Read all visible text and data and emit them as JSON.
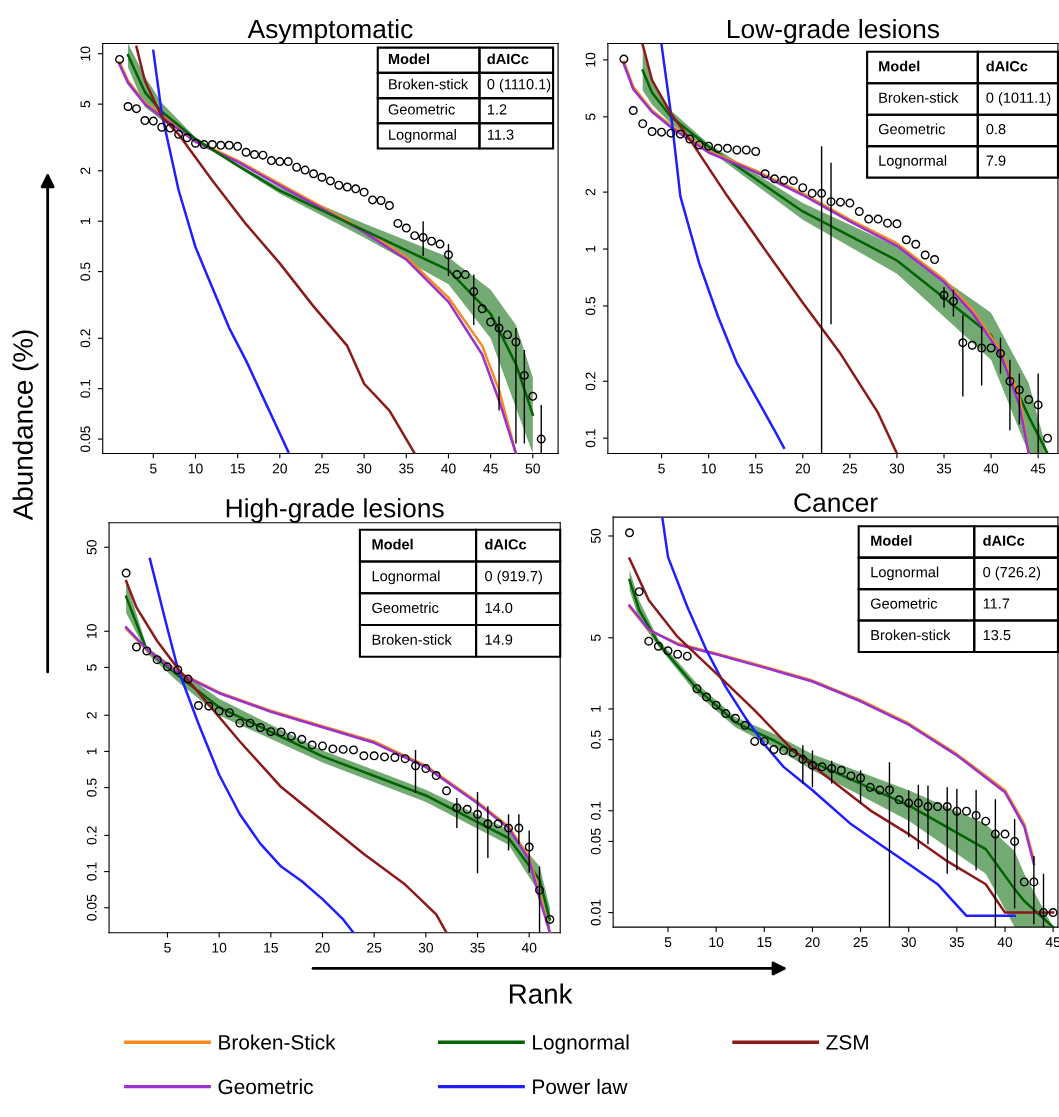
{
  "chart_data": [
    {
      "type": "line",
      "title": "Asymptomatic",
      "ylabel": "Abundance (%)",
      "log": true,
      "legend": "bottom",
      "xlim": [
        -1,
        53
      ],
      "ylim": [
        0.041,
        11.5
      ],
      "xticks": [
        5,
        10,
        15,
        20,
        25,
        30,
        35,
        40,
        45,
        50
      ],
      "yticks": [
        0.05,
        0.1,
        0.2,
        0.5,
        1,
        2,
        5,
        10
      ],
      "annotations": [
        "Model",
        "dAICc",
        "Broken-stick",
        "0 (1110.1)",
        "Geometric",
        "1.2",
        "Lognormal",
        "11.3"
      ],
      "series": [
        {
          "name": "Broken-Stick",
          "color": "#f58a1f",
          "x": [
            1,
            2,
            4,
            6,
            10,
            15,
            20,
            25,
            30,
            35,
            40,
            44,
            46,
            48
          ],
          "values": [
            8.9,
            6.9,
            5.1,
            4.3,
            3.03,
            2.3,
            1.67,
            1.22,
            0.88,
            0.61,
            0.35,
            0.18,
            0.098,
            0.041
          ]
        },
        {
          "name": "Geometric",
          "color": "#9a32cd",
          "x": [
            1,
            2,
            4,
            6,
            10,
            15,
            20,
            25,
            30,
            35,
            40,
            44,
            46,
            48
          ],
          "values": [
            8.6,
            6.7,
            5.0,
            4.2,
            2.98,
            2.26,
            1.63,
            1.19,
            0.86,
            0.59,
            0.33,
            0.16,
            0.085,
            0.041
          ]
        },
        {
          "name": "Lognormal",
          "color": "#006400",
          "x": [
            2,
            4,
            6,
            10,
            15,
            20,
            30,
            40,
            45,
            48,
            50
          ],
          "values": [
            9.8,
            5.9,
            4.5,
            3.1,
            2.15,
            1.52,
            0.88,
            0.51,
            0.28,
            0.14,
            0.07
          ],
          "lower": [
            8.3,
            4.8,
            4.0,
            3.03,
            2.1,
            1.46,
            0.8,
            0.42,
            0.2,
            0.077,
            0.041
          ],
          "upper": [
            11.5,
            7.3,
            5.1,
            3.16,
            2.2,
            1.59,
            0.97,
            0.61,
            0.39,
            0.24,
            0.117
          ]
        },
        {
          "name": "Power law",
          "color": "#1f1fff",
          "x": [
            5,
            6,
            8,
            10,
            12,
            14,
            16,
            18,
            20,
            21
          ],
          "values": [
            10.4,
            4.4,
            1.53,
            0.7,
            0.4,
            0.23,
            0.147,
            0.089,
            0.054,
            0.042
          ]
        },
        {
          "name": "ZSM",
          "color": "#8b1a1a",
          "x": [
            3,
            4,
            6,
            8,
            12,
            16,
            20,
            24,
            28,
            30,
            33,
            36
          ],
          "values": [
            11.0,
            6.9,
            4.2,
            3.3,
            1.75,
            0.96,
            0.56,
            0.31,
            0.18,
            0.107,
            0.074,
            0.041
          ]
        },
        {
          "type": "scatter",
          "marker": "circle",
          "color": "#000000",
          "x": [
            1,
            2,
            3,
            4,
            5,
            6,
            7,
            8,
            9,
            10,
            11,
            12,
            13,
            14,
            15,
            16,
            17,
            18,
            19,
            20,
            21,
            22,
            23,
            24,
            25,
            26,
            27,
            28,
            29,
            30,
            31,
            32,
            33,
            34,
            35,
            36,
            37,
            38,
            39,
            40,
            41,
            42,
            43,
            44,
            45,
            46,
            47,
            48,
            49,
            50,
            51
          ],
          "values": [
            9.25,
            4.84,
            4.7,
            3.99,
            3.96,
            3.64,
            3.6,
            3.3,
            3.15,
            2.92,
            2.87,
            2.87,
            2.84,
            2.84,
            2.8,
            2.58,
            2.5,
            2.48,
            2.3,
            2.27,
            2.27,
            2.1,
            2.02,
            1.92,
            1.83,
            1.74,
            1.64,
            1.6,
            1.56,
            1.49,
            1.34,
            1.33,
            1.24,
            0.97,
            0.91,
            0.82,
            0.8,
            0.76,
            0.73,
            0.63,
            0.48,
            0.48,
            0.38,
            0.3,
            0.25,
            0.23,
            0.21,
            0.19,
            0.12,
            0.09,
            0.05
          ],
          "errors": [
            null,
            null,
            null,
            null,
            null,
            null,
            null,
            null,
            null,
            null,
            null,
            null,
            null,
            null,
            null,
            null,
            null,
            null,
            null,
            null,
            null,
            null,
            null,
            null,
            null,
            null,
            null,
            null,
            null,
            null,
            null,
            null,
            null,
            null,
            null,
            null,
            [
              0.62,
              1.0
            ],
            null,
            null,
            [
              0.47,
              0.73
            ],
            null,
            null,
            [
              0.24,
              0.48
            ],
            null,
            null,
            [
              0.074,
              0.27
            ],
            null,
            [
              0.047,
              0.23
            ],
            [
              0.047,
              0.17
            ],
            null,
            [
              0.041,
              0.08
            ]
          ]
        }
      ]
    },
    {
      "type": "line",
      "title": "Low-grade lesions",
      "log": true,
      "xlim": [
        -0.7,
        47.1
      ],
      "ylim": [
        0.083,
        12.2
      ],
      "xticks": [
        5,
        10,
        15,
        20,
        25,
        30,
        35,
        40,
        45
      ],
      "yticks": [
        0.1,
        0.2,
        0.5,
        1,
        2,
        5,
        10
      ],
      "annotations": [
        "Model",
        "dAICc",
        "Broken-stick",
        "0 (1011.1)",
        "Geometric",
        "0.8",
        "Lognormal",
        "7.9"
      ],
      "series": [
        {
          "color": "#006400",
          "x": [
            3,
            4,
            6,
            10,
            20,
            30,
            40,
            44,
            46
          ],
          "values": [
            8.8,
            6.7,
            5.0,
            3.47,
            1.58,
            0.87,
            0.35,
            0.13,
            0.083
          ],
          "lower": [
            6.9,
            5.8,
            4.6,
            3.34,
            1.43,
            0.74,
            0.26,
            0.083,
            0.083
          ],
          "upper": [
            11.2,
            7.8,
            5.4,
            3.6,
            1.75,
            1.03,
            0.46,
            0.195,
            0.083
          ]
        },
        {
          "color": "#f58a1f",
          "x": [
            1,
            2,
            4,
            6,
            10,
            15,
            20,
            25,
            30,
            35,
            38,
            41,
            43,
            44
          ],
          "values": [
            9.8,
            7.2,
            5.4,
            4.5,
            3.3,
            2.6,
            1.97,
            1.43,
            1.07,
            0.69,
            0.48,
            0.29,
            0.166,
            0.083
          ]
        },
        {
          "color": "#9a32cd",
          "x": [
            1,
            2,
            4,
            6,
            10,
            15,
            20,
            25,
            30,
            35,
            38,
            41,
            43,
            44
          ],
          "values": [
            9.5,
            7.0,
            5.3,
            4.4,
            3.24,
            2.55,
            1.93,
            1.4,
            1.04,
            0.67,
            0.46,
            0.28,
            0.15,
            0.083
          ]
        },
        {
          "color": "#1f1fff",
          "x": [
            5,
            6,
            7,
            9,
            11,
            13,
            15,
            17,
            18
          ],
          "values": [
            12.0,
            5.2,
            1.9,
            0.84,
            0.44,
            0.25,
            0.166,
            0.11,
            0.089
          ]
        },
        {
          "color": "#8b1a1a",
          "x": [
            3,
            4,
            6,
            8,
            12,
            16,
            20,
            24,
            28,
            30
          ],
          "values": [
            12.0,
            7.8,
            5.2,
            3.8,
            1.9,
            0.99,
            0.52,
            0.28,
            0.136,
            0.083
          ]
        },
        {
          "type": "scatter",
          "marker": "circle",
          "color": "#000000",
          "x": [
            1,
            2,
            3,
            4,
            5,
            6,
            7,
            8,
            9,
            10,
            11,
            12,
            13,
            14,
            15,
            16,
            17,
            18,
            19,
            20,
            21,
            22,
            23,
            24,
            25,
            26,
            27,
            28,
            29,
            30,
            31,
            32,
            33,
            34,
            35,
            36,
            37,
            38,
            39,
            40,
            41,
            42,
            43,
            44,
            45,
            46
          ],
          "values": [
            10.1,
            5.4,
            4.6,
            4.18,
            4.15,
            4.1,
            4.05,
            3.82,
            3.55,
            3.5,
            3.41,
            3.41,
            3.34,
            3.34,
            3.28,
            2.5,
            2.35,
            2.31,
            2.3,
            2.11,
            1.97,
            1.97,
            1.78,
            1.77,
            1.75,
            1.58,
            1.44,
            1.44,
            1.37,
            1.36,
            1.12,
            1.06,
            0.93,
            0.88,
            0.57,
            0.53,
            0.32,
            0.31,
            0.3,
            0.3,
            0.28,
            0.2,
            0.18,
            0.16,
            0.15,
            0.1
          ],
          "errors": [
            null,
            null,
            null,
            null,
            null,
            null,
            null,
            null,
            null,
            null,
            null,
            null,
            null,
            null,
            null,
            null,
            null,
            null,
            null,
            null,
            null,
            [
              0.083,
              3.49
            ],
            [
              0.4,
              2.86
            ],
            null,
            null,
            null,
            null,
            null,
            null,
            null,
            null,
            null,
            null,
            null,
            [
              0.49,
              0.63
            ],
            [
              0.44,
              0.61
            ],
            [
              0.166,
              0.45
            ],
            null,
            [
              0.19,
              0.39
            ],
            null,
            [
              0.22,
              0.34
            ],
            [
              0.11,
              0.26
            ],
            [
              0.118,
              0.22
            ],
            null,
            [
              0.083,
              0.22
            ],
            null
          ]
        }
      ]
    },
    {
      "type": "line",
      "title": "High-grade lesions",
      "xlabel": "Rank",
      "log": true,
      "xlim": [
        -0.65,
        43
      ],
      "ylim": [
        0.031,
        80
      ],
      "xticks": [
        5,
        10,
        15,
        20,
        25,
        30,
        35,
        40
      ],
      "yticks": [
        0.05,
        0.1,
        0.2,
        0.5,
        1,
        2,
        5,
        10,
        50
      ],
      "annotations": [
        "Model",
        "dAICc",
        "Lognormal",
        "0 (919.7)",
        "Geometric",
        "14.0",
        "Broken-stick",
        "14.9"
      ],
      "series": [
        {
          "color": "#006400",
          "x": [
            1,
            3,
            6,
            10,
            20,
            30,
            38,
            41,
            42
          ],
          "values": [
            19.4,
            7.0,
            4.3,
            2.33,
            0.91,
            0.43,
            0.19,
            0.086,
            0.04
          ],
          "lower": [
            14.2,
            6.6,
            3.8,
            1.99,
            0.81,
            0.38,
            0.167,
            0.066,
            0.031
          ],
          "upper": [
            26.5,
            7.4,
            4.8,
            2.74,
            1.02,
            0.48,
            0.224,
            0.111,
            0.05
          ]
        },
        {
          "color": "#f58a1f",
          "x": [
            1,
            3,
            6,
            10,
            15,
            20,
            25,
            30,
            35,
            38,
            40,
            41,
            42
          ],
          "values": [
            10.5,
            7.0,
            4.6,
            3.1,
            2.18,
            1.62,
            1.21,
            0.76,
            0.38,
            0.237,
            0.132,
            0.066,
            0.031
          ]
        },
        {
          "color": "#9a32cd",
          "x": [
            1,
            3,
            6,
            10,
            15,
            20,
            25,
            30,
            35,
            38,
            40,
            41,
            42
          ],
          "values": [
            10.8,
            7.1,
            4.5,
            3.05,
            2.14,
            1.59,
            1.18,
            0.74,
            0.37,
            0.23,
            0.125,
            0.06,
            0.031
          ]
        },
        {
          "color": "#1f1fff",
          "x": [
            3.3,
            5,
            6,
            8,
            10,
            12,
            14,
            16,
            18,
            20,
            22,
            23
          ],
          "values": [
            40,
            10.5,
            4.9,
            1.7,
            0.64,
            0.3,
            0.17,
            0.11,
            0.083,
            0.059,
            0.04,
            0.031
          ]
        },
        {
          "color": "#8b1a1a",
          "x": [
            1,
            2,
            4,
            6,
            8,
            12,
            16,
            20,
            24,
            28,
            31,
            32
          ],
          "values": [
            26.2,
            15.8,
            8.3,
            4.9,
            3.1,
            1.21,
            0.505,
            0.266,
            0.14,
            0.078,
            0.044,
            0.031
          ]
        },
        {
          "type": "scatter",
          "marker": "circle",
          "color": "#000000",
          "x": [
            1,
            2,
            3,
            4,
            5,
            6,
            7,
            8,
            9,
            10,
            11,
            12,
            13,
            14,
            15,
            16,
            17,
            18,
            19,
            20,
            21,
            22,
            23,
            24,
            25,
            26,
            27,
            28,
            29,
            30,
            31,
            32,
            33,
            34,
            35,
            36,
            37,
            38,
            39,
            40,
            41,
            42
          ],
          "values": [
            30.5,
            7.4,
            6.85,
            5.8,
            5.06,
            4.78,
            4.0,
            2.41,
            2.38,
            2.17,
            2.1,
            1.72,
            1.72,
            1.58,
            1.46,
            1.45,
            1.34,
            1.26,
            1.13,
            1.11,
            1.05,
            1.04,
            1.03,
            0.92,
            0.92,
            0.9,
            0.89,
            0.87,
            0.76,
            0.72,
            0.63,
            0.47,
            0.34,
            0.33,
            0.3,
            0.25,
            0.25,
            0.23,
            0.23,
            0.16,
            0.07,
            0.04
          ],
          "errors": [
            null,
            null,
            null,
            null,
            null,
            null,
            null,
            null,
            null,
            null,
            null,
            null,
            null,
            null,
            null,
            null,
            null,
            null,
            null,
            null,
            null,
            null,
            null,
            null,
            null,
            null,
            null,
            null,
            [
              0.45,
              1.03
            ],
            null,
            null,
            null,
            [
              0.23,
              0.41
            ],
            null,
            [
              0.097,
              0.46
            ],
            [
              0.13,
              0.35
            ],
            null,
            [
              0.15,
              0.3
            ],
            [
              0.17,
              0.3
            ],
            [
              0.098,
              0.22
            ],
            [
              0.031,
              0.11
            ],
            null
          ]
        }
      ]
    },
    {
      "type": "line",
      "title": "Cancer",
      "log": true,
      "xlim": [
        -0.7,
        45.5
      ],
      "ylim": [
        0.0072,
        76.5
      ],
      "xticks": [
        5,
        10,
        15,
        20,
        25,
        30,
        35,
        40,
        45
      ],
      "yticks": [
        0.01,
        0.05,
        0.1,
        0.5,
        1,
        5,
        50
      ],
      "annotations": [
        "Model",
        "dAICc",
        "Lognormal",
        "0 (726.2)",
        "Geometric",
        "11.7",
        "Broken-stick",
        "13.5"
      ],
      "series": [
        {
          "color": "#006400",
          "x": [
            1,
            2,
            4,
            8,
            12,
            16,
            20,
            30,
            38,
            41,
            42,
            45
          ],
          "values": [
            18.4,
            9.4,
            4.4,
            1.58,
            0.74,
            0.49,
            0.3,
            0.113,
            0.042,
            0.017,
            0.013,
            0.0072
          ],
          "lower": [
            14.7,
            7.5,
            4.1,
            1.4,
            0.66,
            0.42,
            0.25,
            0.08,
            0.024,
            0.0072,
            0.0072,
            0.0072
          ],
          "upper": [
            23,
            11.7,
            4.8,
            1.78,
            0.83,
            0.57,
            0.36,
            0.159,
            0.074,
            0.04,
            0.024,
            0.0072
          ]
        },
        {
          "color": "#f58a1f",
          "x": [
            1,
            3,
            6,
            10,
            15,
            20,
            25,
            30,
            35,
            40,
            42,
            43
          ],
          "values": [
            10.1,
            5.9,
            4.4,
            3.5,
            2.6,
            1.9,
            1.22,
            0.72,
            0.36,
            0.159,
            0.074,
            0.033
          ]
        },
        {
          "color": "#9a32cd",
          "x": [
            1,
            3,
            6,
            10,
            15,
            20,
            25,
            30,
            35,
            40,
            42,
            43
          ],
          "values": [
            10.4,
            6.0,
            4.3,
            3.45,
            2.55,
            1.86,
            1.19,
            0.7,
            0.35,
            0.152,
            0.07,
            0.03
          ]
        },
        {
          "color": "#1f1fff",
          "x": [
            4.4,
            5,
            7,
            9,
            11,
            13,
            15,
            17,
            20,
            24,
            27,
            30,
            33,
            36,
            41
          ],
          "values": [
            76.5,
            31,
            10.1,
            3.75,
            1.64,
            0.83,
            0.45,
            0.27,
            0.159,
            0.074,
            0.047,
            0.03,
            0.019,
            0.0093,
            0.0093
          ]
        },
        {
          "color": "#8b1a1a",
          "x": [
            1,
            3,
            6,
            10,
            14,
            18,
            22,
            26,
            30,
            34,
            38,
            40,
            45
          ],
          "values": [
            30,
            11.7,
            5.1,
            2.24,
            0.97,
            0.39,
            0.198,
            0.101,
            0.059,
            0.032,
            0.019,
            0.01,
            0.01
          ]
        },
        {
          "type": "scatter",
          "marker": "circle",
          "color": "#000000",
          "x": [
            1,
            2,
            3,
            4,
            5,
            6,
            7,
            8,
            9,
            10,
            11,
            12,
            13,
            14,
            15,
            16,
            17,
            18,
            19,
            20,
            21,
            22,
            23,
            24,
            25,
            26,
            27,
            28,
            29,
            30,
            31,
            32,
            33,
            34,
            35,
            36,
            37,
            38,
            39,
            40,
            41,
            42,
            43,
            44,
            45
          ],
          "values": [
            53.8,
            14.2,
            4.63,
            4.13,
            3.72,
            3.45,
            3.3,
            1.58,
            1.31,
            1.09,
            0.9,
            0.81,
            0.69,
            0.48,
            0.48,
            0.4,
            0.39,
            0.37,
            0.32,
            0.28,
            0.27,
            0.26,
            0.25,
            0.22,
            0.21,
            0.17,
            0.16,
            0.16,
            0.128,
            0.119,
            0.119,
            0.11,
            0.11,
            0.11,
            0.099,
            0.099,
            0.09,
            0.079,
            0.059,
            0.059,
            0.05,
            0.02,
            0.02,
            0.01,
            0.01
          ],
          "errors": [
            null,
            null,
            null,
            null,
            null,
            null,
            null,
            null,
            null,
            null,
            null,
            null,
            null,
            null,
            null,
            null,
            null,
            null,
            [
              0.185,
              0.44
            ],
            [
              0.17,
              0.39
            ],
            null,
            [
              0.185,
              0.31
            ],
            null,
            null,
            [
              0.117,
              0.25
            ],
            null,
            null,
            [
              0.0072,
              0.3
            ],
            null,
            [
              0.055,
              0.158
            ],
            [
              0.042,
              0.18
            ],
            [
              0.047,
              0.177
            ],
            null,
            [
              0.024,
              0.17
            ],
            [
              0.026,
              0.165
            ],
            null,
            [
              0.026,
              0.16
            ],
            null,
            [
              0.0072,
              0.13
            ],
            null,
            [
              0.011,
              0.083
            ],
            null,
            [
              0.0077,
              0.036
            ],
            [
              0.0072,
              0.024
            ],
            null
          ]
        }
      ]
    }
  ]
}
